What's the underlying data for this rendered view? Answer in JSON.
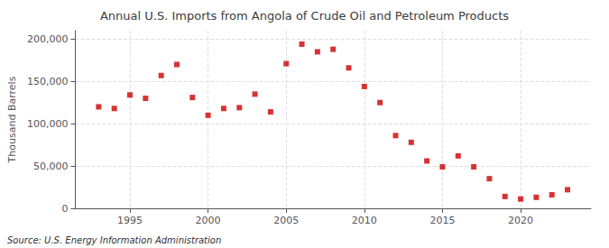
{
  "chart_data": {
    "type": "scatter",
    "title": "Annual U.S. Imports from Angola of Crude Oil and Petroleum Products",
    "ylabel": "Thousand Barrels",
    "annotations": [
      "Source: U.S. Energy Information Administration"
    ],
    "x": [
      1993,
      1994,
      1995,
      1996,
      1997,
      1998,
      1999,
      2000,
      2001,
      2002,
      2003,
      2004,
      2005,
      2006,
      2007,
      2008,
      2009,
      2010,
      2011,
      2012,
      2013,
      2014,
      2015,
      2016,
      2017,
      2018,
      2019,
      2020,
      2021,
      2022,
      2023
    ],
    "values": [
      120000,
      118000,
      134000,
      130000,
      157000,
      170000,
      131000,
      110000,
      118000,
      119000,
      135000,
      114000,
      171000,
      194000,
      185000,
      188000,
      166000,
      144000,
      125000,
      86000,
      78000,
      56000,
      49000,
      62000,
      49000,
      35000,
      14000,
      11000,
      13000,
      16000,
      22000
    ],
    "color": "#cc0000",
    "marker": "square",
    "xlim": [
      1991.5,
      2024.5
    ],
    "xticks": [
      1995,
      2000,
      2005,
      2010,
      2015,
      2020
    ],
    "ylim": [
      0,
      210000
    ],
    "yticks": [
      0,
      {
        "value": 50000,
        "label": "50,000"
      },
      {
        "value": 100000,
        "label": "100,000"
      },
      {
        "value": 150000,
        "label": "150,000"
      },
      {
        "value": 200000,
        "label": "200,000"
      }
    ],
    "grid": true
  }
}
